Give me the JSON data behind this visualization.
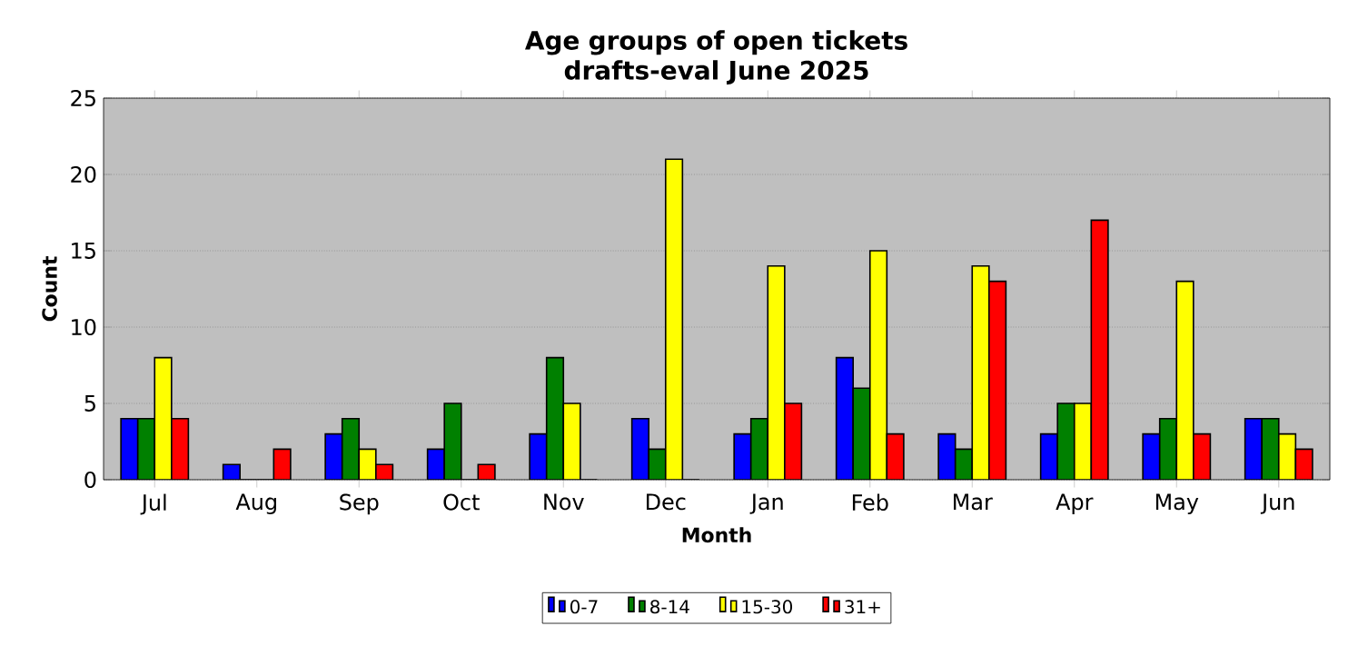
{
  "chart_data": {
    "type": "bar",
    "title": "Age groups of open tickets drafts-eval June 2025",
    "xlabel": "Month",
    "ylabel": "Count",
    "categories": [
      "Jul",
      "Aug",
      "Sep",
      "Oct",
      "Nov",
      "Dec",
      "Jan",
      "Feb",
      "Mar",
      "Apr",
      "May",
      "Jun"
    ],
    "series": [
      {
        "name": "0-7",
        "color": "#0000ff",
        "values": [
          4,
          1,
          3,
          2,
          3,
          4,
          3,
          8,
          3,
          3,
          3,
          4
        ]
      },
      {
        "name": "8-14",
        "color": "#008000",
        "values": [
          4,
          0,
          4,
          5,
          8,
          2,
          4,
          6,
          2,
          5,
          4,
          4
        ]
      },
      {
        "name": "15-30",
        "color": "#ffff00",
        "values": [
          8,
          0,
          2,
          0,
          5,
          21,
          14,
          15,
          14,
          5,
          13,
          3
        ]
      },
      {
        "name": "31+",
        "color": "#ff0000",
        "values": [
          4,
          2,
          1,
          1,
          0,
          0,
          5,
          3,
          13,
          17,
          3,
          2
        ]
      }
    ],
    "ylim": [
      0,
      25
    ],
    "yticks": [
      0,
      5,
      10,
      15,
      20,
      25
    ],
    "grid": "y",
    "legend": "bottom"
  }
}
